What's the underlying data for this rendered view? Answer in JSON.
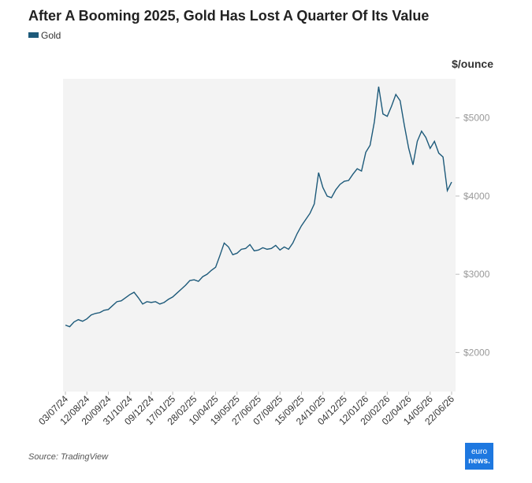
{
  "chart_data": {
    "type": "line",
    "title": "After A Booming 2025, Gold Has Lost A Quarter Of Its Value",
    "y_axis_label": "$/ounce",
    "source": "Source: TradingView",
    "logo": [
      "euro",
      "news."
    ],
    "categories": [
      "03/07/24",
      null,
      null,
      null,
      null,
      "12/08/24",
      null,
      null,
      null,
      null,
      "20/09/24",
      null,
      null,
      null,
      null,
      "31/10/24",
      null,
      null,
      null,
      null,
      "09/12/24",
      null,
      null,
      null,
      null,
      "17/01/25",
      null,
      null,
      null,
      null,
      "28/02/25",
      null,
      null,
      null,
      null,
      "10/04/25",
      null,
      null,
      null,
      null,
      "19/05/25",
      null,
      null,
      null,
      null,
      "27/06/25",
      null,
      null,
      null,
      null,
      "07/08/25",
      null,
      null,
      null,
      null,
      "15/09/25",
      null,
      null,
      null,
      null,
      "24/10/25",
      null,
      null,
      null,
      null,
      "04/12/25",
      null,
      null,
      null,
      null,
      "12/01/26",
      null,
      null,
      null,
      null,
      "20/02/26",
      null,
      null,
      null,
      null,
      "02/04/26",
      null,
      null,
      null,
      null,
      "14/05/26",
      null,
      null,
      null,
      null,
      "22/06/26"
    ],
    "series": [
      {
        "name": "Gold",
        "color": "#1d5a7a",
        "values": [
          2350,
          2330,
          2390,
          2420,
          2400,
          2430,
          2480,
          2500,
          2510,
          2540,
          2550,
          2600,
          2650,
          2660,
          2700,
          2740,
          2770,
          2700,
          2620,
          2650,
          2640,
          2650,
          2620,
          2640,
          2680,
          2710,
          2760,
          2810,
          2860,
          2920,
          2930,
          2910,
          2970,
          3000,
          3050,
          3090,
          3240,
          3400,
          3350,
          3250,
          3270,
          3320,
          3330,
          3380,
          3300,
          3310,
          3340,
          3320,
          3330,
          3370,
          3310,
          3350,
          3320,
          3400,
          3520,
          3620,
          3700,
          3780,
          3900,
          4300,
          4110,
          4000,
          3980,
          4080,
          4150,
          4190,
          4200,
          4280,
          4350,
          4320,
          4560,
          4650,
          4950,
          5400,
          5050,
          5020,
          5150,
          5300,
          5220,
          4900,
          4610,
          4400,
          4700,
          4830,
          4750,
          4610,
          4700,
          4550,
          4500,
          4070,
          4180
        ]
      }
    ],
    "ylim": [
      1500,
      5500
    ],
    "yticks": [
      {
        "value": 2000,
        "label": "$2000"
      },
      {
        "value": 3000,
        "label": "$3000"
      },
      {
        "value": 4000,
        "label": "$4000"
      },
      {
        "value": 5000,
        "label": "$5000"
      }
    ],
    "legend": "top-left",
    "background": "#f3f3f3"
  }
}
